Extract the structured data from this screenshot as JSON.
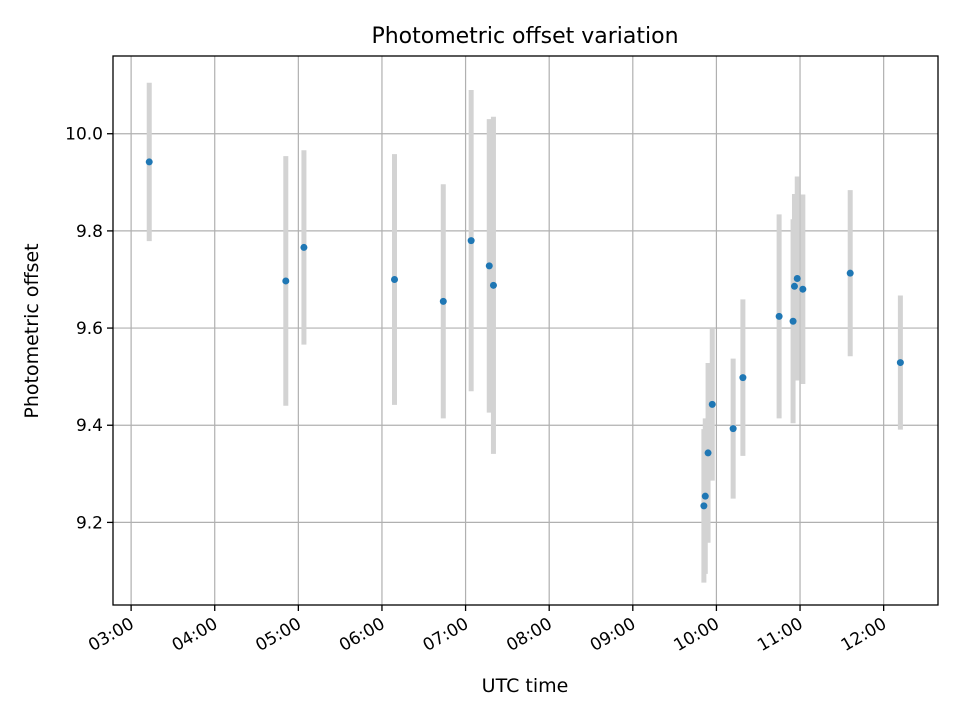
{
  "chart_data": {
    "type": "scatter",
    "title": "Photometric offset variation",
    "xlabel": "UTC time",
    "ylabel": "Photometric offset",
    "x_tick_labels": [
      "03:00",
      "04:00",
      "05:00",
      "06:00",
      "07:00",
      "08:00",
      "09:00",
      "10:00",
      "11:00",
      "12:00"
    ],
    "y_ticks": [
      9.2,
      9.4,
      9.6,
      9.8,
      10.0
    ],
    "y_tick_labels": [
      "9.2",
      "9.4",
      "9.6",
      "9.8",
      "10.0"
    ],
    "xlim": [
      "02:47",
      "12:39"
    ],
    "ylim": [
      9.03,
      10.16
    ],
    "grid": true,
    "legend": "none",
    "marker_color": "#1f77b4",
    "errorbar_color": "#d3d3d3",
    "points": [
      {
        "x": "03:13",
        "y": 9.942,
        "err": 0.163
      },
      {
        "x": "04:51",
        "y": 9.697,
        "err": 0.257
      },
      {
        "x": "05:04",
        "y": 9.766,
        "err": 0.2
      },
      {
        "x": "06:09",
        "y": 9.7,
        "err": 0.258
      },
      {
        "x": "06:44",
        "y": 9.655,
        "err": 0.241
      },
      {
        "x": "07:04",
        "y": 9.78,
        "err": 0.31
      },
      {
        "x": "07:17",
        "y": 9.728,
        "err": 0.302
      },
      {
        "x": "07:20",
        "y": 9.688,
        "err": 0.347
      },
      {
        "x": "09:51",
        "y": 9.234,
        "err": 0.158
      },
      {
        "x": "09:52",
        "y": 9.254,
        "err": 0.16
      },
      {
        "x": "09:54",
        "y": 9.343,
        "err": 0.185
      },
      {
        "x": "09:57",
        "y": 9.443,
        "err": 0.157
      },
      {
        "x": "10:12",
        "y": 9.393,
        "err": 0.144
      },
      {
        "x": "10:19",
        "y": 9.498,
        "err": 0.161
      },
      {
        "x": "10:45",
        "y": 9.624,
        "err": 0.21
      },
      {
        "x": "10:55",
        "y": 9.614,
        "err": 0.21
      },
      {
        "x": "10:56",
        "y": 9.686,
        "err": 0.19
      },
      {
        "x": "10:58",
        "y": 9.702,
        "err": 0.21
      },
      {
        "x": "11:02",
        "y": 9.68,
        "err": 0.195
      },
      {
        "x": "11:36",
        "y": 9.713,
        "err": 0.171
      },
      {
        "x": "12:12",
        "y": 9.529,
        "err": 0.138
      }
    ]
  }
}
